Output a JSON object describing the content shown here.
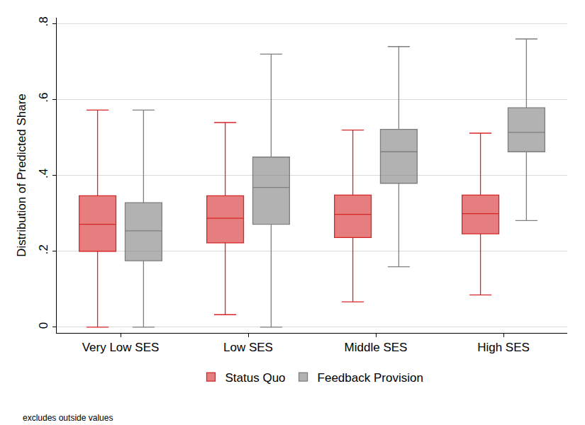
{
  "chart_data": {
    "type": "box",
    "y_label": "Distribution of Predicted Share",
    "categories": [
      "Very Low SES",
      "Low SES",
      "Middle SES",
      "High SES"
    ],
    "series": [
      {
        "name": "Status Quo",
        "color": "#d62728",
        "min": [
          0,
          0.033,
          0.067,
          0.085
        ],
        "q1": [
          0.2,
          0.222,
          0.236,
          0.246
        ],
        "median": [
          0.271,
          0.287,
          0.297,
          0.299
        ],
        "q3": [
          0.346,
          0.346,
          0.348,
          0.348
        ],
        "max": [
          0.572,
          0.539,
          0.519,
          0.511
        ]
      },
      {
        "name": "Feedback Provision",
        "color": "#7f7f7f",
        "min": [
          0,
          0,
          0.159,
          0.281
        ],
        "q1": [
          0.175,
          0.271,
          0.379,
          0.462
        ],
        "median": [
          0.254,
          0.368,
          0.462,
          0.513
        ],
        "q3": [
          0.328,
          0.448,
          0.521,
          0.578
        ],
        "max": [
          0.572,
          0.719,
          0.739,
          0.759
        ]
      }
    ],
    "ylim": [
      -0.015,
      0.815
    ],
    "yticks": [
      0,
      {
        "value": 0.2,
        "label": ".2"
      },
      {
        "value": 0.4,
        "label": ".4"
      },
      {
        "value": 0.6,
        "label": ".6"
      },
      {
        "value": 0.8,
        "label": ".8"
      }
    ],
    "grid": true,
    "legend": "bottom",
    "annotations": [
      "excludes outside values"
    ]
  }
}
